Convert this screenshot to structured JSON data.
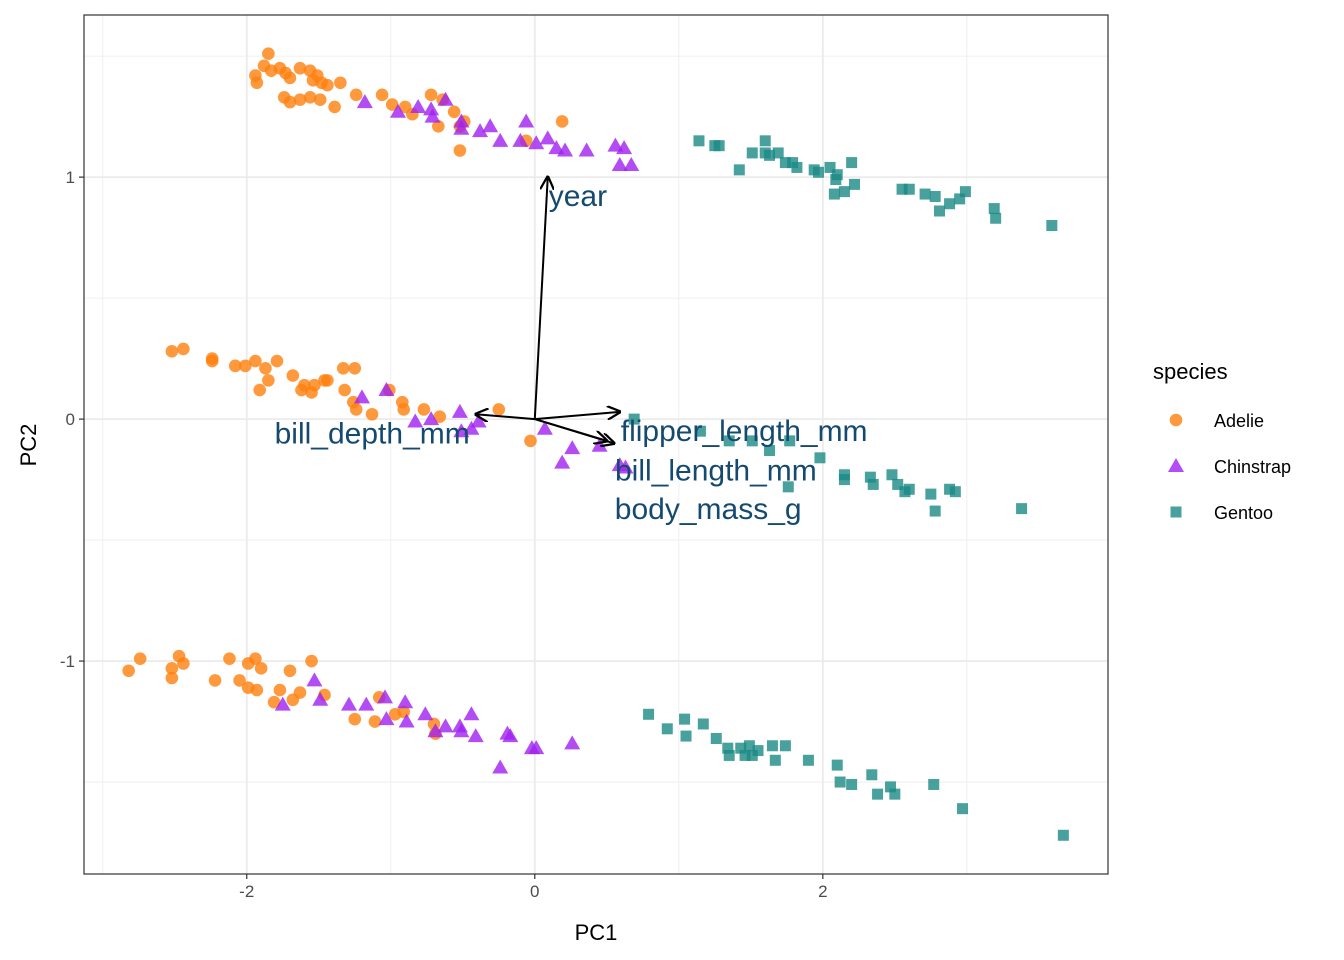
{
  "chart_data": {
    "type": "scatter",
    "subtype": "pca-biplot",
    "xlabel": "PC1",
    "ylabel": "PC2",
    "xlim": [
      -3.13,
      3.98
    ],
    "ylim": [
      -1.88,
      1.67
    ],
    "x_ticks": [
      -2,
      0,
      2
    ],
    "y_ticks": [
      -1,
      0,
      1
    ],
    "x_tick_labels": [
      "-2",
      "0",
      "2"
    ],
    "y_tick_labels": [
      "-1",
      "0",
      "1"
    ],
    "grid": true,
    "legend": {
      "title": "species",
      "placement": "right"
    },
    "series": [
      {
        "name": "Adelie",
        "color": "#FF7F0E",
        "marker": "circle",
        "points": [
          [
            -1.85,
            1.51
          ],
          [
            -1.88,
            1.46
          ],
          [
            -1.93,
            1.39
          ],
          [
            -1.83,
            1.44
          ],
          [
            -1.77,
            1.45
          ],
          [
            -1.73,
            1.43
          ],
          [
            -1.7,
            1.41
          ],
          [
            -1.63,
            1.45
          ],
          [
            -1.56,
            1.44
          ],
          [
            -1.54,
            1.4
          ],
          [
            -1.51,
            1.42
          ],
          [
            -1.48,
            1.39
          ],
          [
            -1.44,
            1.38
          ],
          [
            -1.35,
            1.39
          ],
          [
            -1.74,
            1.33
          ],
          [
            -1.7,
            1.31
          ],
          [
            -1.63,
            1.32
          ],
          [
            -1.56,
            1.33
          ],
          [
            -1.49,
            1.32
          ],
          [
            -1.39,
            1.29
          ],
          [
            -1.24,
            1.34
          ],
          [
            -1.06,
            1.34
          ],
          [
            -0.99,
            1.3
          ],
          [
            -0.9,
            1.29
          ],
          [
            -0.85,
            1.26
          ],
          [
            -0.72,
            1.34
          ],
          [
            -0.67,
            1.21
          ],
          [
            -0.64,
            1.32
          ],
          [
            -0.56,
            1.27
          ],
          [
            -0.52,
            1.21
          ],
          [
            -0.49,
            1.23
          ],
          [
            -0.52,
            1.11
          ],
          [
            0.19,
            1.23
          ],
          [
            -0.06,
            1.15
          ],
          [
            -1.94,
            1.42
          ],
          [
            -2.52,
            0.28
          ],
          [
            -2.44,
            0.29
          ],
          [
            -2.24,
            0.25
          ],
          [
            -2.24,
            0.24
          ],
          [
            -2.08,
            0.22
          ],
          [
            -2.01,
            0.22
          ],
          [
            -1.94,
            0.24
          ],
          [
            -1.87,
            0.21
          ],
          [
            -1.79,
            0.24
          ],
          [
            -1.85,
            0.16
          ],
          [
            -1.91,
            0.12
          ],
          [
            -1.68,
            0.18
          ],
          [
            -1.6,
            0.14
          ],
          [
            -1.53,
            0.14
          ],
          [
            -1.46,
            0.16
          ],
          [
            -1.33,
            0.21
          ],
          [
            -1.25,
            0.21
          ],
          [
            -1.62,
            0.12
          ],
          [
            -1.55,
            0.11
          ],
          [
            -1.26,
            0.07
          ],
          [
            -1.24,
            0.04
          ],
          [
            -1.13,
            0.02
          ],
          [
            -1.01,
            0.12
          ],
          [
            -0.92,
            0.07
          ],
          [
            -0.91,
            0.04
          ],
          [
            -0.77,
            0.04
          ],
          [
            -0.66,
            0.01
          ],
          [
            -0.25,
            0.04
          ],
          [
            -0.03,
            -0.09
          ],
          [
            -1.32,
            0.12
          ],
          [
            -1.44,
            0.16
          ],
          [
            -2.82,
            -1.04
          ],
          [
            -2.74,
            -0.99
          ],
          [
            -2.47,
            -0.98
          ],
          [
            -2.44,
            -1.01
          ],
          [
            -2.52,
            -1.03
          ],
          [
            -2.52,
            -1.07
          ],
          [
            -2.22,
            -1.08
          ],
          [
            -2.12,
            -0.99
          ],
          [
            -2.05,
            -1.08
          ],
          [
            -1.99,
            -1.01
          ],
          [
            -1.94,
            -0.99
          ],
          [
            -1.93,
            -1.12
          ],
          [
            -1.9,
            -1.03
          ],
          [
            -1.99,
            -1.11
          ],
          [
            -1.81,
            -1.17
          ],
          [
            -1.77,
            -1.12
          ],
          [
            -1.7,
            -1.04
          ],
          [
            -1.68,
            -1.16
          ],
          [
            -1.63,
            -1.13
          ],
          [
            -1.55,
            -1.0
          ],
          [
            -1.46,
            -1.14
          ],
          [
            -1.25,
            -1.24
          ],
          [
            -1.11,
            -1.25
          ],
          [
            -1.08,
            -1.15
          ],
          [
            -0.97,
            -1.22
          ],
          [
            -0.91,
            -1.21
          ],
          [
            -0.7,
            -1.26
          ],
          [
            -0.69,
            -1.3
          ]
        ]
      },
      {
        "name": "Chinstrap",
        "color": "#A020F0",
        "marker": "triangle",
        "points": [
          [
            -1.18,
            1.31
          ],
          [
            -0.95,
            1.27
          ],
          [
            -0.81,
            1.29
          ],
          [
            -0.72,
            1.28
          ],
          [
            -0.62,
            1.32
          ],
          [
            -0.51,
            1.23
          ],
          [
            -0.51,
            1.2
          ],
          [
            -0.38,
            1.19
          ],
          [
            -0.31,
            1.21
          ],
          [
            -0.24,
            1.15
          ],
          [
            -0.1,
            1.15
          ],
          [
            -0.06,
            1.23
          ],
          [
            0.01,
            1.14
          ],
          [
            0.09,
            1.16
          ],
          [
            0.15,
            1.12
          ],
          [
            0.21,
            1.11
          ],
          [
            0.36,
            1.11
          ],
          [
            0.56,
            1.13
          ],
          [
            0.62,
            1.12
          ],
          [
            0.59,
            1.05
          ],
          [
            0.67,
            1.05
          ],
          [
            -0.71,
            1.25
          ],
          [
            -1.2,
            0.09
          ],
          [
            -1.03,
            0.12
          ],
          [
            -0.83,
            -0.01
          ],
          [
            -0.72,
            0.0
          ],
          [
            -0.52,
            0.03
          ],
          [
            -0.51,
            -0.05
          ],
          [
            -0.44,
            -0.04
          ],
          [
            -0.39,
            -0.01
          ],
          [
            0.07,
            -0.04
          ],
          [
            0.19,
            -0.18
          ],
          [
            0.26,
            -0.12
          ],
          [
            0.59,
            -0.19
          ],
          [
            0.63,
            -0.2
          ],
          [
            0.45,
            -0.11
          ],
          [
            -1.75,
            -1.18
          ],
          [
            -1.53,
            -1.08
          ],
          [
            -1.49,
            -1.16
          ],
          [
            -1.29,
            -1.18
          ],
          [
            -1.17,
            -1.18
          ],
          [
            -1.04,
            -1.15
          ],
          [
            -1.03,
            -1.24
          ],
          [
            -0.9,
            -1.17
          ],
          [
            -0.89,
            -1.25
          ],
          [
            -0.76,
            -1.22
          ],
          [
            -0.69,
            -1.29
          ],
          [
            -0.62,
            -1.27
          ],
          [
            -0.52,
            -1.27
          ],
          [
            -0.44,
            -1.22
          ],
          [
            -0.41,
            -1.31
          ],
          [
            -0.19,
            -1.3
          ],
          [
            -0.17,
            -1.31
          ],
          [
            -0.02,
            -1.36
          ],
          [
            0.01,
            -1.36
          ],
          [
            0.26,
            -1.34
          ],
          [
            -0.24,
            -1.44
          ],
          [
            -0.51,
            -1.29
          ]
        ]
      },
      {
        "name": "Gentoo",
        "color": "#1B8A86",
        "marker": "square",
        "points": [
          [
            1.14,
            1.15
          ],
          [
            1.25,
            1.13
          ],
          [
            1.28,
            1.13
          ],
          [
            1.42,
            1.03
          ],
          [
            1.6,
            1.15
          ],
          [
            1.6,
            1.1
          ],
          [
            1.63,
            1.09
          ],
          [
            1.69,
            1.1
          ],
          [
            1.74,
            1.06
          ],
          [
            1.82,
            1.04
          ],
          [
            1.94,
            1.03
          ],
          [
            2.05,
            1.04
          ],
          [
            2.1,
            1.01
          ],
          [
            2.2,
            1.06
          ],
          [
            2.09,
            0.99
          ],
          [
            2.15,
            0.94
          ],
          [
            2.22,
            0.97
          ],
          [
            1.97,
            1.02
          ],
          [
            2.55,
            0.95
          ],
          [
            2.6,
            0.95
          ],
          [
            2.71,
            0.93
          ],
          [
            2.78,
            0.92
          ],
          [
            2.81,
            0.86
          ],
          [
            2.88,
            0.89
          ],
          [
            2.95,
            0.91
          ],
          [
            2.99,
            0.94
          ],
          [
            3.19,
            0.87
          ],
          [
            3.2,
            0.83
          ],
          [
            3.59,
            0.8
          ],
          [
            2.08,
            0.93
          ],
          [
            1.79,
            1.06
          ],
          [
            1.51,
            1.1
          ],
          [
            0.69,
            0.0
          ],
          [
            1.15,
            -0.05
          ],
          [
            1.51,
            -0.09
          ],
          [
            1.77,
            -0.09
          ],
          [
            1.98,
            -0.16
          ],
          [
            1.76,
            -0.28
          ],
          [
            2.15,
            -0.23
          ],
          [
            2.33,
            -0.24
          ],
          [
            2.48,
            -0.23
          ],
          [
            2.52,
            -0.27
          ],
          [
            2.57,
            -0.3
          ],
          [
            2.6,
            -0.29
          ],
          [
            2.75,
            -0.31
          ],
          [
            2.78,
            -0.38
          ],
          [
            2.88,
            -0.29
          ],
          [
            2.92,
            -0.3
          ],
          [
            3.38,
            -0.37
          ],
          [
            2.15,
            -0.25
          ],
          [
            2.35,
            -0.27
          ],
          [
            1.35,
            -0.09
          ],
          [
            1.63,
            -0.13
          ],
          [
            0.79,
            -1.22
          ],
          [
            0.92,
            -1.28
          ],
          [
            1.04,
            -1.24
          ],
          [
            1.05,
            -1.31
          ],
          [
            1.17,
            -1.26
          ],
          [
            1.26,
            -1.32
          ],
          [
            1.34,
            -1.36
          ],
          [
            1.35,
            -1.39
          ],
          [
            1.43,
            -1.36
          ],
          [
            1.49,
            -1.35
          ],
          [
            1.51,
            -1.39
          ],
          [
            1.65,
            -1.35
          ],
          [
            1.67,
            -1.41
          ],
          [
            1.74,
            -1.35
          ],
          [
            1.9,
            -1.41
          ],
          [
            2.1,
            -1.43
          ],
          [
            2.12,
            -1.5
          ],
          [
            2.2,
            -1.51
          ],
          [
            2.34,
            -1.47
          ],
          [
            2.38,
            -1.55
          ],
          [
            2.47,
            -1.52
          ],
          [
            2.5,
            -1.55
          ],
          [
            2.77,
            -1.51
          ],
          [
            2.97,
            -1.61
          ],
          [
            3.67,
            -1.72
          ],
          [
            1.46,
            -1.39
          ],
          [
            1.55,
            -1.37
          ]
        ]
      }
    ],
    "loadings": [
      {
        "label": "year",
        "x": 0.09,
        "y": 1.0
      },
      {
        "label": "bill_depth_mm",
        "x": -0.41,
        "y": 0.02
      },
      {
        "label": "flipper_length_mm",
        "x": 0.59,
        "y": 0.03
      },
      {
        "label": "bill_length_mm",
        "x": 0.55,
        "y": -0.1
      },
      {
        "label": "body_mass_g",
        "x": 0.5,
        "y": -0.09
      }
    ],
    "loading_color": "#154A70"
  }
}
